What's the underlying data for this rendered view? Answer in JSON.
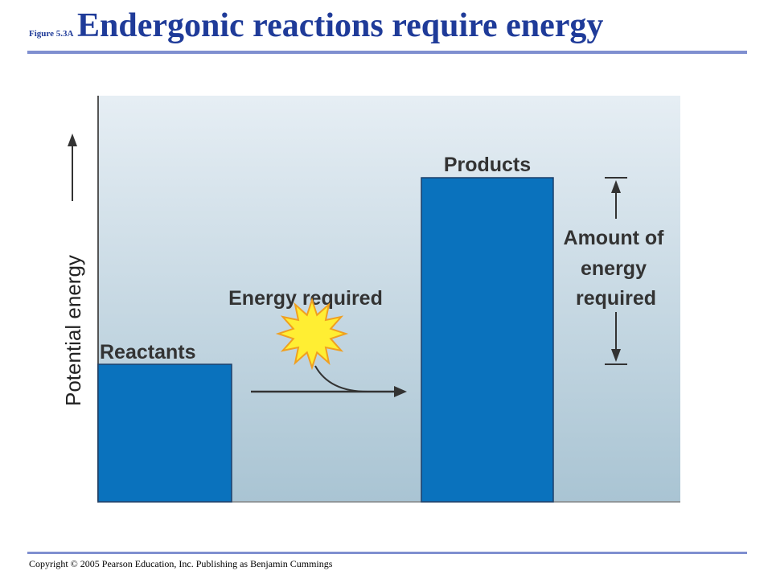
{
  "header": {
    "figure_label": "Figure 5.3A",
    "title": "Endergonic reactions require energy"
  },
  "diagram": {
    "y_axis_label": "Potential energy",
    "reactants_label": "Reactants",
    "products_label": "Products",
    "energy_required_label": "Energy required",
    "amount_label_lines": [
      "Amount of",
      "energy",
      "required"
    ],
    "colors": {
      "bar": "#0a72bd",
      "background_top": "#e6eef4",
      "background_bottom": "#a9c4d3",
      "burst": "#ffee33",
      "burst_edge": "#f0a020"
    },
    "icons": [
      "sun-burst-icon",
      "arrow-right-icon",
      "up-arrow-icon",
      "double-arrow-icon"
    ]
  },
  "footer": {
    "copyright": "Copyright © 2005 Pearson Education, Inc. Publishing as Benjamin Cummings"
  }
}
